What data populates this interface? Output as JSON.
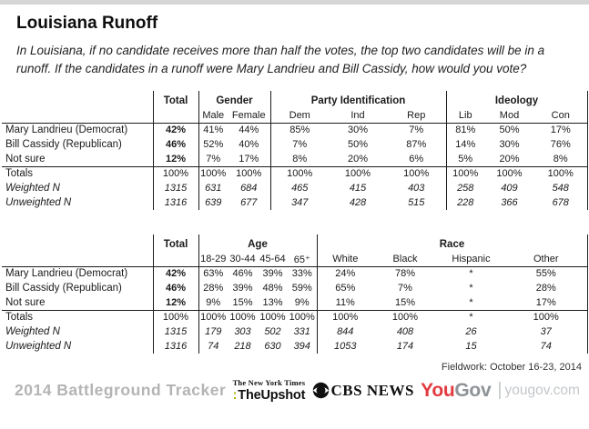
{
  "page": {
    "title": "Louisiana Runoff",
    "subtitle": "In Louisiana, if no candidate receives more than half the votes, the top two candidates will be in a runoff. If the candidates in a runoff were Mary Landrieu and Bill Cassidy, how would you vote?",
    "fieldwork": "Fieldwork: October 16-23, 2014"
  },
  "tables": [
    {
      "name": "gender-party-ideology",
      "groups": [
        {
          "label": "Total",
          "span": 1
        },
        {
          "label": "Gender",
          "span": 2
        },
        {
          "label": "Party Identification",
          "span": 3
        },
        {
          "label": "Ideology",
          "span": 3
        }
      ],
      "subheaders": [
        "",
        "Male",
        "Female",
        "Dem",
        "Ind",
        "Rep",
        "Lib",
        "Mod",
        "Con"
      ],
      "rows": [
        {
          "label": "Mary Landrieu (Democrat)",
          "style": "data",
          "values": [
            "42%",
            "41%",
            "44%",
            "85%",
            "30%",
            "7%",
            "81%",
            "50%",
            "17%"
          ]
        },
        {
          "label": "Bill Cassidy (Republican)",
          "style": "data",
          "values": [
            "46%",
            "52%",
            "40%",
            "7%",
            "50%",
            "87%",
            "14%",
            "30%",
            "76%"
          ]
        },
        {
          "label": "Not sure",
          "style": "data",
          "values": [
            "12%",
            "7%",
            "17%",
            "8%",
            "20%",
            "6%",
            "5%",
            "20%",
            "8%"
          ]
        },
        {
          "label": "Totals",
          "style": "totals",
          "values": [
            "100%",
            "100%",
            "100%",
            "100%",
            "100%",
            "100%",
            "100%",
            "100%",
            "100%"
          ]
        },
        {
          "label": "Weighted N",
          "style": "wn",
          "values": [
            "1315",
            "631",
            "684",
            "465",
            "415",
            "403",
            "258",
            "409",
            "548"
          ]
        },
        {
          "label": "Unweighted N",
          "style": "wn",
          "values": [
            "1316",
            "639",
            "677",
            "347",
            "428",
            "515",
            "228",
            "366",
            "678"
          ]
        }
      ]
    },
    {
      "name": "age-race",
      "groups": [
        {
          "label": "Total",
          "span": 1
        },
        {
          "label": "Age",
          "span": 4
        },
        {
          "label": "Race",
          "span": 4
        }
      ],
      "subheaders": [
        "",
        "18-29",
        "30-44",
        "45-64",
        "65⁺",
        "White",
        "Black",
        "Hispanic",
        "Other"
      ],
      "rows": [
        {
          "label": "Mary Landrieu (Democrat)",
          "style": "data",
          "values": [
            "42%",
            "63%",
            "46%",
            "39%",
            "33%",
            "24%",
            "78%",
            "*",
            "55%"
          ]
        },
        {
          "label": "Bill Cassidy (Republican)",
          "style": "data",
          "values": [
            "46%",
            "28%",
            "39%",
            "48%",
            "59%",
            "65%",
            "7%",
            "*",
            "28%"
          ]
        },
        {
          "label": "Not sure",
          "style": "data",
          "values": [
            "12%",
            "9%",
            "15%",
            "13%",
            "9%",
            "11%",
            "15%",
            "*",
            "17%"
          ]
        },
        {
          "label": "Totals",
          "style": "totals",
          "values": [
            "100%",
            "100%",
            "100%",
            "100%",
            "100%",
            "100%",
            "100%",
            "*",
            "100%"
          ]
        },
        {
          "label": "Weighted N",
          "style": "wn",
          "values": [
            "1315",
            "179",
            "303",
            "502",
            "331",
            "844",
            "408",
            "26",
            "37"
          ]
        },
        {
          "label": "Unweighted N",
          "style": "wn",
          "values": [
            "1316",
            "74",
            "218",
            "630",
            "394",
            "1053",
            "174",
            "15",
            "74"
          ]
        }
      ]
    }
  ],
  "footer": {
    "tracker": "2014 Battleground Tracker",
    "nyt_masthead": "The New York Times",
    "upshot_colon": ":",
    "upshot": "TheUpshot",
    "cbs": "CBS NEWS",
    "yougov_you": "You",
    "yougov_gov": "Gov",
    "yougov_sep": "|",
    "yougov_domain": "yougov.com"
  },
  "colors": {
    "upshot-green": "#a8b400",
    "yougov-red": "#e23a3f",
    "yougov-gray": "#8e9398",
    "yougov-light": "#c3c7ca",
    "tracker-gray": "#b4b4b4",
    "line": "#1c1c1c",
    "top-strip": "#d6d6d6"
  }
}
